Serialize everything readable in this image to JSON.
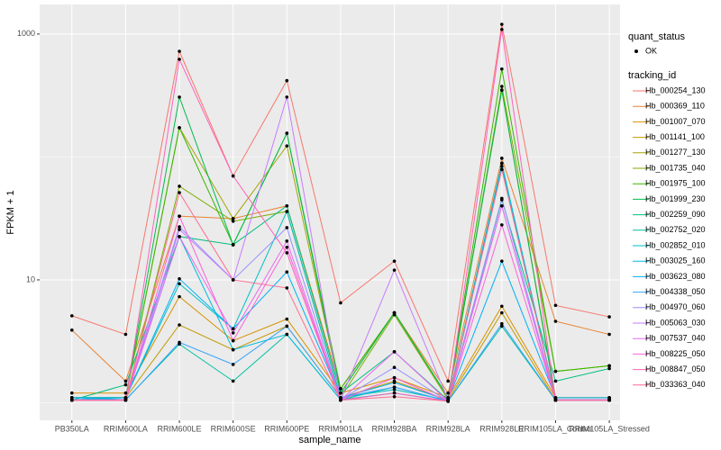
{
  "chart_data": {
    "type": "line",
    "log_y": true,
    "grid": true,
    "x_label": "sample_name",
    "y_label": "FPKM + 1",
    "status_legend": {
      "title": "quant_status",
      "labels": [
        "OK"
      ]
    },
    "legend_title": "tracking_id",
    "point_color": "#000000",
    "categories": [
      "PB350LA",
      "RRIM600LA",
      "RRIM600LE",
      "RRIM600SE",
      "RRIM600PE",
      "RRIM901LA",
      "RRIM928BA",
      "RRIM928LA",
      "RRIM928LE",
      "RRIM105LA_Control",
      "RRIM105LA_Stressed"
    ],
    "ylim": [
      0.72,
      1740
    ],
    "yticks": [
      10,
      1000
    ],
    "series": [
      {
        "name": "Hb_000254_130",
        "color": "#F8766D",
        "values": [
          5.1,
          3.6,
          724,
          70,
          418,
          6.5,
          14.2,
          1.5,
          1200,
          6.2,
          5.0
        ]
      },
      {
        "name": "Hb_000369_110",
        "color": "#EA8331",
        "values": [
          3.9,
          1.5,
          33,
          31.5,
          40,
          1.3,
          5.4,
          1.2,
          97.6,
          4.6,
          3.6
        ]
      },
      {
        "name": "Hb_001007_070",
        "color": "#D89000",
        "values": [
          1.2,
          1.2,
          7.3,
          3.2,
          4.8,
          1.2,
          1.6,
          1.1,
          6.1,
          1.1,
          1.1
        ]
      },
      {
        "name": "Hb_001141_100",
        "color": "#C09B00",
        "values": [
          1.1,
          1.1,
          4.3,
          2.7,
          4.2,
          1.1,
          1.5,
          1.05,
          5.4,
          1.05,
          1.05
        ]
      },
      {
        "name": "Hb_001277_130",
        "color": "#A3A500",
        "values": [
          1.1,
          1.1,
          173,
          31.5,
          123,
          1.2,
          5.4,
          1.1,
          350,
          1.1,
          1.1
        ]
      },
      {
        "name": "Hb_001735_040",
        "color": "#7CAE00",
        "values": [
          1.05,
          1.05,
          57.8,
          30,
          36,
          1.1,
          5.2,
          1.06,
          375,
          1.8,
          2.0
        ]
      },
      {
        "name": "Hb_001975_100",
        "color": "#39B600",
        "values": [
          1.1,
          1.1,
          173,
          19.3,
          156,
          1.3,
          5.4,
          1.1,
          520,
          1.8,
          2.0
        ]
      },
      {
        "name": "Hb_001999_230",
        "color": "#00BB4E",
        "values": [
          1.1,
          1.1,
          307,
          19.3,
          156,
          1.2,
          5.4,
          1.1,
          350,
          1.05,
          1.05
        ]
      },
      {
        "name": "Hb_002259_090",
        "color": "#00BF7D",
        "values": [
          1.05,
          1.4,
          22.5,
          19.3,
          40,
          1.2,
          2.6,
          1.05,
          44.8,
          1.5,
          1.9
        ]
      },
      {
        "name": "Hb_002752_020",
        "color": "#00C1A3",
        "values": [
          1.06,
          1.06,
          3.0,
          1.5,
          3.6,
          1.06,
          1.34,
          1.03,
          4.2,
          1.05,
          1.05
        ]
      },
      {
        "name": "Hb_002852_010",
        "color": "#00BFC4",
        "values": [
          1.06,
          1.1,
          9.3,
          4.0,
          36,
          1.1,
          1.28,
          1.05,
          89,
          1.06,
          1.06
        ]
      },
      {
        "name": "Hb_003025_160",
        "color": "#00BAE0",
        "values": [
          1.1,
          1.06,
          22.5,
          2.7,
          3.6,
          1.06,
          1.2,
          1.03,
          84,
          1.06,
          1.06
        ]
      },
      {
        "name": "Hb_003623_080",
        "color": "#00B0F6",
        "values": [
          1.1,
          1.1,
          10.2,
          4.0,
          11.6,
          1.1,
          1.46,
          1.05,
          14.2,
          1.1,
          1.1
        ]
      },
      {
        "name": "Hb_004338_050",
        "color": "#35A2FF",
        "values": [
          1.05,
          1.05,
          3.1,
          2.05,
          4.2,
          1.1,
          1.34,
          1.03,
          4.4,
          1.05,
          1.05
        ]
      },
      {
        "name": "Hb_004970_060",
        "color": "#9590FF",
        "values": [
          1.06,
          1.06,
          27,
          10,
          26.6,
          1.06,
          1.94,
          1.03,
          46,
          1.06,
          1.06
        ]
      },
      {
        "name": "Hb_005063_030",
        "color": "#C77CFF",
        "values": [
          1.05,
          1.05,
          25.7,
          10,
          307,
          1.06,
          12,
          1.05,
          40,
          1.05,
          1.05
        ]
      },
      {
        "name": "Hb_007537_040",
        "color": "#E76BF3",
        "values": [
          1.05,
          1.05,
          22.5,
          3.7,
          20.7,
          1.05,
          2.6,
          1.03,
          40,
          1.05,
          1.05
        ]
      },
      {
        "name": "Hb_008225_050",
        "color": "#FA62DB",
        "values": [
          1.05,
          1.05,
          33,
          3.2,
          18.4,
          1.05,
          1.6,
          1.03,
          28,
          1.05,
          1.05
        ]
      },
      {
        "name": "Hb_008847_050",
        "color": "#FF62BC",
        "values": [
          1.05,
          1.05,
          623,
          70,
          16.6,
          1.05,
          1.2,
          1.03,
          1090,
          1.05,
          1.05
        ]
      },
      {
        "name": "Hb_033363_040",
        "color": "#FF6C91",
        "values": [
          1.05,
          1.05,
          51.3,
          10,
          8.6,
          1.05,
          1.12,
          1.03,
          79,
          1.05,
          1.05
        ]
      }
    ]
  }
}
